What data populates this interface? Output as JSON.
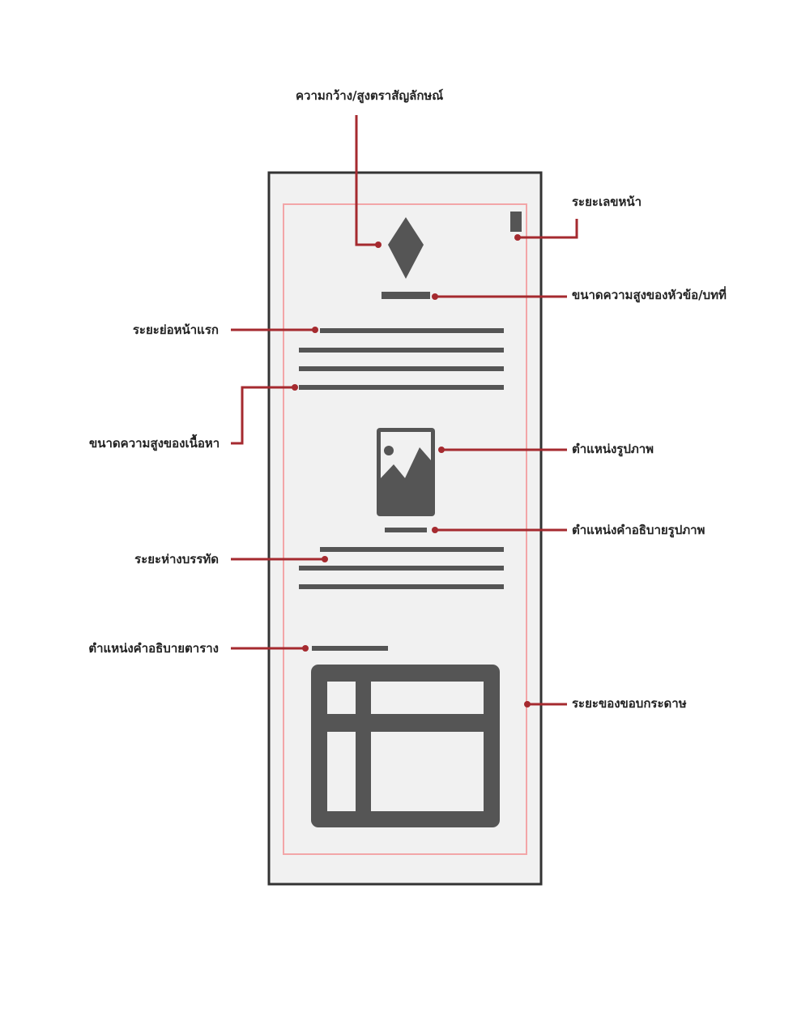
{
  "colors": {
    "page_border": "#333333",
    "page_fill": "#f1f1f1",
    "margin_line": "#f3a6a8",
    "element": "#555555",
    "callout": "#a52a2f"
  },
  "labels": {
    "logo_size": "ความกว้าง/สูงตราสัญลักษณ์",
    "page_number_position": "ระยะเลขหน้า",
    "heading_height": "ขนาดความสูงของหัวข้อ/บทที่",
    "first_line_indent": "ระยะย่อหน้าแรก",
    "content_height": "ขนาดความสูงของเนื้อหา",
    "image_position": "ตำแหน่งรูปภาพ",
    "image_caption_position": "ตำแหน่งคำอธิบายรูปภาพ",
    "line_spacing": "ระยะห่างบรรทัด",
    "table_caption_position": "ตำแหน่งคำอธิบายตาราง",
    "page_margin": "ระยะของขอบกระดาษ"
  }
}
